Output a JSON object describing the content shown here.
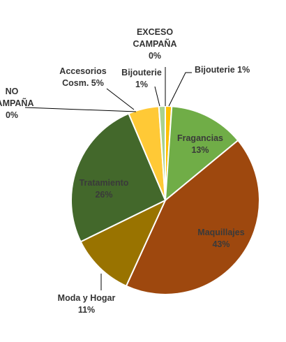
{
  "chart_data": {
    "type": "pie",
    "title": "",
    "start_angle_deg": 0,
    "slices": [
      {
        "name": "Bijouterie",
        "value": 1,
        "label_lines": [
          "Bijouterie 1%"
        ],
        "color": "#FFC000"
      },
      {
        "name": "Fragancias",
        "value": 13,
        "label_lines": [
          "Fragancias",
          "13%"
        ],
        "color": "#70AD47"
      },
      {
        "name": "Maquillajes",
        "value": 43,
        "label_lines": [
          "Maquillajes",
          "43%"
        ],
        "color": "#9E480E"
      },
      {
        "name": "Moda y Hogar",
        "value": 11,
        "label_lines": [
          "Moda y Hogar",
          "11%"
        ],
        "color": "#997300"
      },
      {
        "name": "Tratamiento",
        "value": 26,
        "label_lines": [
          "Tratamiento",
          "26%"
        ],
        "color": "#43682B"
      },
      {
        "name": "NO CAMPAÑA",
        "value": 0,
        "label_lines": [
          "NO",
          "CAMPAÑA",
          "0%"
        ],
        "color": "#FF0000"
      },
      {
        "name": "Accesorios Cosm.",
        "value": 5,
        "label_lines": [
          "Accesorios",
          "Cosm. 5%"
        ],
        "color": "#FFC936"
      },
      {
        "name": "Bijouterie",
        "value": 1,
        "label_lines": [
          "Bijouterie",
          "1%"
        ],
        "color": "#A9D18E"
      },
      {
        "name": "EXCESO CAMPAÑA",
        "value": 0,
        "label_lines": [
          "EXCESO",
          "CAMPAÑA",
          "0%"
        ],
        "color": "#2E75B6"
      }
    ]
  }
}
